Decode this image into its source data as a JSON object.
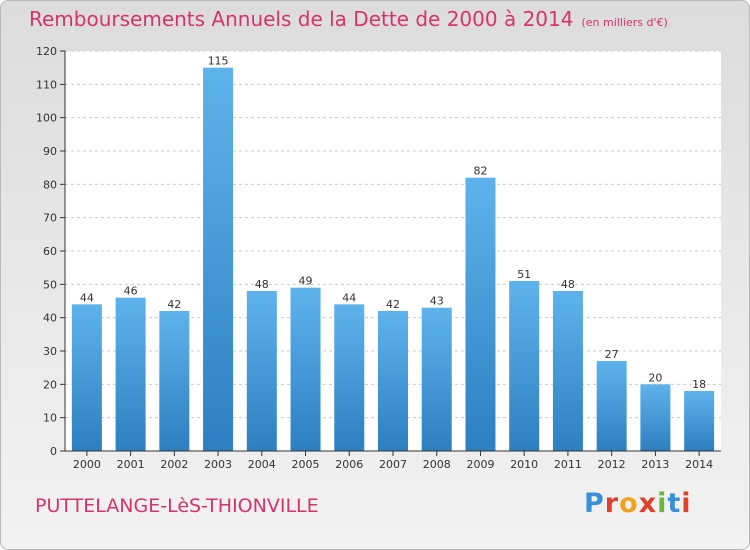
{
  "header": {
    "title": "Remboursements Annuels de la Dette de 2000 à 2014",
    "subtitle": "(en milliers d'€)"
  },
  "footer": {
    "city": "PUTTELANGE-LèS-THIONVILLE",
    "logo_letters": [
      "P",
      "r",
      "o",
      "x",
      "i",
      "t",
      "i"
    ],
    "logo_colors": [
      "#3a8fd8",
      "#e0402a",
      "#f0a21c",
      "#e0402a",
      "#6bb53b",
      "#3a8fd8",
      "#e0402a"
    ]
  },
  "colors": {
    "title": "#d6336c",
    "bar_light": "#5fb3ec",
    "bar_dark": "#2d7fc0",
    "axis": "#333333",
    "grid": "#c9c9c9"
  },
  "chart_data": {
    "type": "bar",
    "categories": [
      "2000",
      "2001",
      "2002",
      "2003",
      "2004",
      "2005",
      "2006",
      "2007",
      "2008",
      "2009",
      "2010",
      "2011",
      "2012",
      "2013",
      "2014"
    ],
    "values": [
      44,
      46,
      42,
      115,
      48,
      49,
      44,
      42,
      43,
      82,
      51,
      48,
      27,
      20,
      18
    ],
    "ylim": [
      0,
      120
    ],
    "yticks": [
      0,
      10,
      20,
      30,
      40,
      50,
      60,
      70,
      80,
      90,
      100,
      110,
      120
    ],
    "grid": true
  }
}
